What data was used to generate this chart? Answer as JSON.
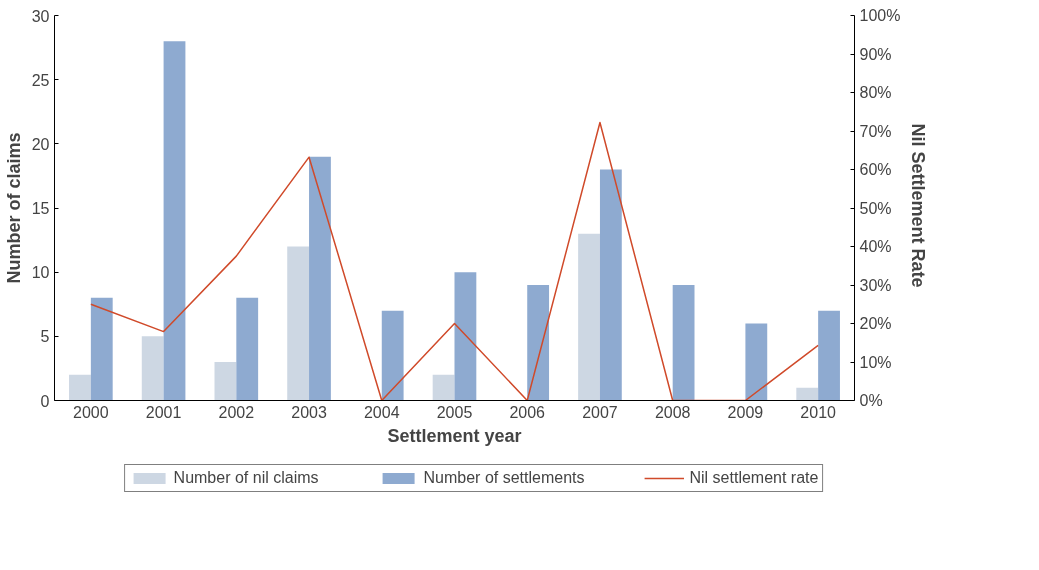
{
  "chart_data": {
    "type": "bar",
    "xlabel": "Settlement year",
    "ylabel": "Number of claims",
    "y2label": "Nil Settlement  Rate",
    "categories": [
      "2000",
      "2001",
      "2002",
      "2003",
      "2004",
      "2005",
      "2006",
      "2007",
      "2008",
      "2009",
      "2010"
    ],
    "series": [
      {
        "name": "Number of nil claims",
        "color": "#cdd7e3",
        "values": [
          2,
          5,
          3,
          12,
          0,
          2,
          0,
          13,
          0,
          0,
          1
        ]
      },
      {
        "name": "Number of settlements",
        "color": "#8eaad0",
        "values": [
          8,
          28,
          8,
          19,
          7,
          10,
          9,
          18,
          9,
          6,
          7
        ]
      },
      {
        "name": "Nil settlement rate",
        "type": "line",
        "axis": "y2",
        "color": "#d04a2a",
        "values": [
          25,
          17.9,
          37.5,
          63.2,
          0,
          20,
          0,
          72.2,
          0,
          0,
          14.3
        ]
      }
    ],
    "ylim": [
      0,
      30
    ],
    "yticks": [
      0,
      5,
      10,
      15,
      20,
      25,
      30
    ],
    "y2lim": [
      0,
      100
    ],
    "y2ticks": [
      {
        "value": 0,
        "label": "0%"
      },
      {
        "value": 10,
        "label": "10%"
      },
      {
        "value": 20,
        "label": "20%"
      },
      {
        "value": 30,
        "label": "30%"
      },
      {
        "value": 40,
        "label": "40%"
      },
      {
        "value": 50,
        "label": "50%"
      },
      {
        "value": 60,
        "label": "60%"
      },
      {
        "value": 70,
        "label": "70%"
      },
      {
        "value": 80,
        "label": "80%"
      },
      {
        "value": 90,
        "label": "90%"
      },
      {
        "value": 100,
        "label": "100%"
      }
    ],
    "grid": false,
    "legend": "bottom",
    "marker": "none",
    "line_style": "solid"
  }
}
